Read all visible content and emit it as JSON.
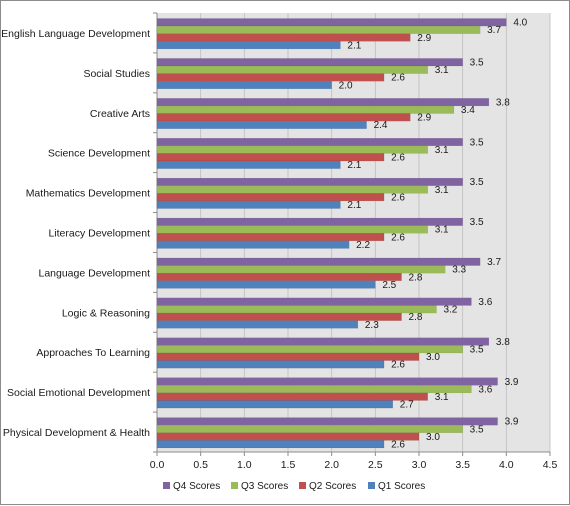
{
  "chart_data": {
    "type": "bar",
    "orientation": "horizontal",
    "categories": [
      "English Language Development",
      "Social Studies",
      "Creative Arts",
      "Science Development",
      "Mathematics Development",
      "Literacy Development",
      "Language Development",
      "Logic & Reasoning",
      "Approaches To Learning",
      "Social Emotional Development",
      "Physical Development & Health"
    ],
    "series": [
      {
        "name": "Q4 Scores",
        "color": "#8064a2",
        "values": [
          4.0,
          3.5,
          3.8,
          3.5,
          3.5,
          3.5,
          3.7,
          3.6,
          3.8,
          3.9,
          3.9
        ]
      },
      {
        "name": "Q3 Scores",
        "color": "#9bbb59",
        "values": [
          3.7,
          3.1,
          3.4,
          3.1,
          3.1,
          3.1,
          3.3,
          3.2,
          3.5,
          3.6,
          3.5
        ]
      },
      {
        "name": "Q2 Scores",
        "color": "#c0504d",
        "values": [
          2.9,
          2.6,
          2.9,
          2.6,
          2.6,
          2.6,
          2.8,
          2.8,
          3.0,
          3.1,
          3.0
        ]
      },
      {
        "name": "Q1 Scores",
        "color": "#4f81bd",
        "values": [
          2.1,
          2.0,
          2.4,
          2.1,
          2.1,
          2.2,
          2.5,
          2.3,
          2.6,
          2.7,
          2.6
        ]
      }
    ],
    "xlim": [
      0,
      4.5
    ],
    "x_ticks": [
      "0.0",
      "0.5",
      "1.0",
      "1.5",
      "2.0",
      "2.5",
      "3.0",
      "3.5",
      "4.0",
      "4.5"
    ],
    "grid": true,
    "legend": "bottom"
  }
}
